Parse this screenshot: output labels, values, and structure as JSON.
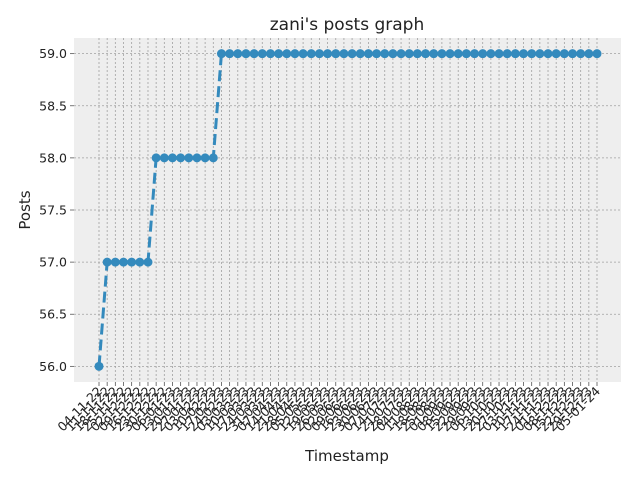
{
  "chart_data": {
    "type": "line",
    "title": "zani's posts graph",
    "xlabel": "Timestamp",
    "ylabel": "Posts",
    "ylim": [
      55.85,
      59.15
    ],
    "yticks": [
      "56.0",
      "56.5",
      "57.0",
      "57.5",
      "58.0",
      "58.5",
      "59.0"
    ],
    "grid": true,
    "categories": [
      "04-11-22",
      "11-11-22",
      "18-11-22",
      "25-11-22",
      "02-12-22",
      "09-12-22",
      "16-12-22",
      "23-12-22",
      "30-12-22",
      "06-01-23",
      "13-01-23",
      "20-01-23",
      "27-01-23",
      "03-02-23",
      "10-02-23",
      "17-02-23",
      "24-02-23",
      "03-03-23",
      "10-03-23",
      "17-03-23",
      "24-03-23",
      "31-03-23",
      "07-04-23",
      "14-04-23",
      "21-04-23",
      "28-04-23",
      "05-05-23",
      "12-05-23",
      "19-05-23",
      "26-05-23",
      "02-06-23",
      "09-06-23",
      "16-06-23",
      "23-06-23",
      "30-06-23",
      "07-07-23",
      "14-07-23",
      "21-07-23",
      "28-07-23",
      "04-08-23",
      "11-08-23",
      "18-08-23",
      "25-08-23",
      "01-09-23",
      "08-09-23",
      "15-09-23",
      "22-09-23",
      "29-09-23",
      "06-10-23",
      "13-10-23",
      "20-10-23",
      "27-10-23",
      "03-11-23",
      "10-11-23",
      "17-11-23",
      "24-11-23",
      "01-12-23",
      "08-12-23",
      "15-12-23",
      "22-12-23",
      "29-12-23",
      "05-01-24"
    ],
    "visible_xtick_labels": [
      "04-11-22",
      "11-11-22",
      "18-11-22",
      "25-11-22",
      "02-12-22",
      "09-12-22",
      "16-12-22",
      "23-12-22",
      "30-12-22",
      "06-01-23",
      "13-01-23",
      "20-01-23",
      "27-01-23",
      "03-02-23",
      "10-02-23",
      "17-02-23",
      "24-02-23",
      "03-03-23",
      "10-03-23",
      "17-03-23",
      "24-03-23",
      "31-03-23",
      "07-04-23",
      "14-04-23",
      "21-04-23",
      "28-04-23",
      "05-05-23",
      "12-05-23",
      "19-05-23",
      "26-05-23",
      "02-06-23",
      "09-06-23",
      "16-06-23",
      "23-06-23",
      "30-06-23",
      "07-07-23",
      "14-07-23",
      "21-07-23",
      "28-07-23",
      "04-08-23",
      "11-08-23",
      "18-08-23",
      "25-08-23",
      "01-09-23",
      "08-09-23",
      "15-09-23",
      "22-09-23",
      "29-09-23",
      "06-10-23",
      "13-10-23",
      "20-10-23",
      "27-10-23",
      "03-11-23",
      "10-11-23",
      "17-11-23",
      "24-11-23",
      "01-12-23",
      "08-12-23",
      "15-12-23",
      "22-12-23",
      "29-12-23",
      "05-01-24"
    ],
    "values": [
      56,
      57,
      57,
      57,
      57,
      57,
      57,
      58,
      58,
      58,
      58,
      58,
      58,
      58,
      58,
      59,
      59,
      59,
      59,
      59,
      59,
      59,
      59,
      59,
      59,
      59,
      59,
      59,
      59,
      59,
      59,
      59,
      59,
      59,
      59,
      59,
      59,
      59,
      59,
      59,
      59,
      59,
      59,
      59,
      59,
      59,
      59,
      59,
      59,
      59,
      59,
      59,
      59,
      59,
      59,
      59,
      59,
      59,
      59,
      59,
      59,
      59
    ],
    "line_color": "#348abd",
    "background_color": "#eeeeee"
  }
}
